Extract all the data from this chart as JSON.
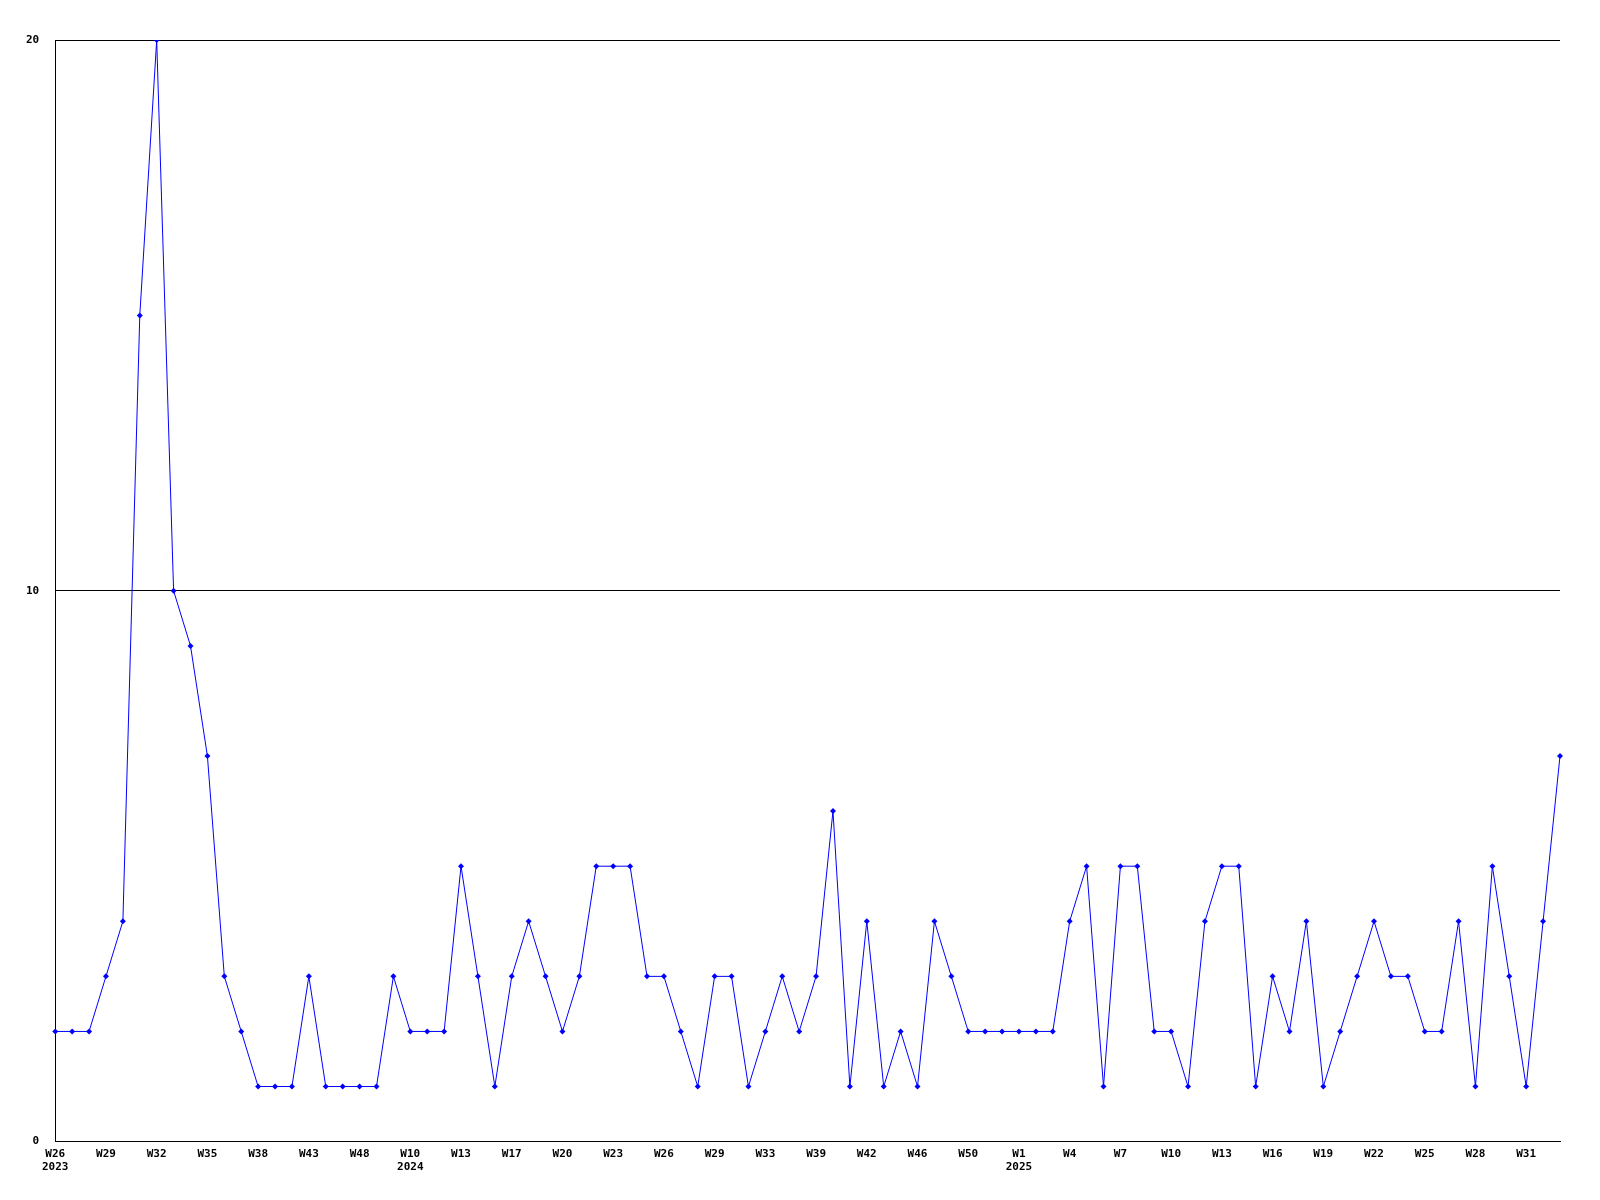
{
  "chart_data": {
    "type": "line",
    "color": "#0000ff",
    "marker": "diamond",
    "grid": "y",
    "legend": false,
    "categories": [
      "W26\n2023",
      null,
      null,
      "W29",
      null,
      null,
      "W32",
      null,
      null,
      "W35",
      null,
      null,
      "W38",
      null,
      null,
      "W43",
      null,
      null,
      "W48",
      null,
      null,
      "W10\n2024",
      null,
      null,
      "W13",
      null,
      null,
      "W17",
      null,
      null,
      "W20",
      null,
      null,
      "W23",
      null,
      null,
      "W26",
      null,
      null,
      "W29",
      null,
      null,
      "W33",
      null,
      null,
      "W39",
      null,
      null,
      "W42",
      null,
      null,
      "W46",
      null,
      null,
      "W50",
      null,
      null,
      "W1\n2025",
      null,
      null,
      "W4",
      null,
      null,
      "W7",
      null,
      null,
      "W10",
      null,
      null,
      "W13",
      null,
      null,
      "W16",
      null,
      null,
      "W19",
      null,
      null,
      "W22",
      null,
      null,
      "W25",
      null,
      null,
      "W28",
      null,
      null,
      "W31",
      null,
      null
    ],
    "values": [
      2,
      2,
      2,
      3,
      4,
      15,
      20,
      10,
      9,
      7,
      3,
      2,
      1,
      1,
      1,
      3,
      1,
      1,
      1,
      1,
      3,
      2,
      2,
      2,
      5,
      3,
      1,
      3,
      4,
      3,
      2,
      3,
      5,
      5,
      5,
      3,
      3,
      2,
      1,
      3,
      3,
      1,
      2,
      3,
      2,
      3,
      6,
      1,
      4,
      1,
      2,
      1,
      4,
      3,
      2,
      2,
      2,
      2,
      2,
      2,
      4,
      5,
      1,
      5,
      5,
      2,
      2,
      1,
      4,
      5,
      5,
      1,
      3,
      2,
      4,
      1,
      2,
      3,
      4,
      3,
      3,
      2,
      2,
      4,
      1,
      5,
      3,
      1,
      4,
      7
    ],
    "ylim": [
      0,
      20
    ],
    "yticks": [
      0,
      10,
      20
    ]
  }
}
